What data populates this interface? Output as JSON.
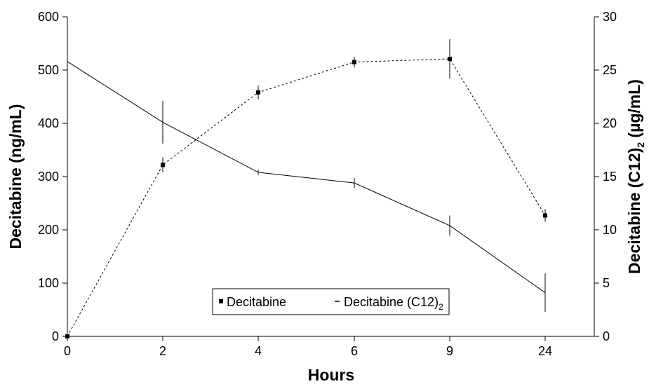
{
  "chart_data": {
    "type": "line",
    "title": "",
    "xlabel": "Hours",
    "ylabel_left": "Decitabine (ng/mL)",
    "ylabel_right_main": "Decitabine (C12)",
    "ylabel_right_sub": "2",
    "ylabel_right_tail": " (µg/mL)",
    "x_categories": [
      "0",
      "2",
      "4",
      "6",
      "9",
      "24"
    ],
    "ylim_left": [
      0,
      600
    ],
    "yticks_left": [
      0,
      100,
      200,
      300,
      400,
      500,
      600
    ],
    "ylim_right": [
      0,
      30
    ],
    "yticks_right": [
      0,
      5,
      10,
      15,
      20,
      25,
      30
    ],
    "grid": false,
    "legend_position": "bottom-center",
    "legend": {
      "series1_label": "Decitabine",
      "series2_label_main": "Decitabine (C12)",
      "series2_label_sub": "2"
    },
    "series": [
      {
        "name": "Decitabine",
        "axis": "left",
        "style": "dashed-with-square-markers",
        "values": [
          0,
          322,
          458,
          515,
          521,
          227
        ],
        "errors": [
          0,
          14,
          13,
          10,
          37,
          12
        ]
      },
      {
        "name": "Decitabine (C12)2",
        "axis": "right",
        "style": "solid",
        "values": [
          25.8,
          20.1,
          15.4,
          14.4,
          10.4,
          4.1
        ],
        "errors": [
          0,
          2.0,
          0.25,
          0.45,
          0.95,
          1.8
        ]
      }
    ]
  }
}
